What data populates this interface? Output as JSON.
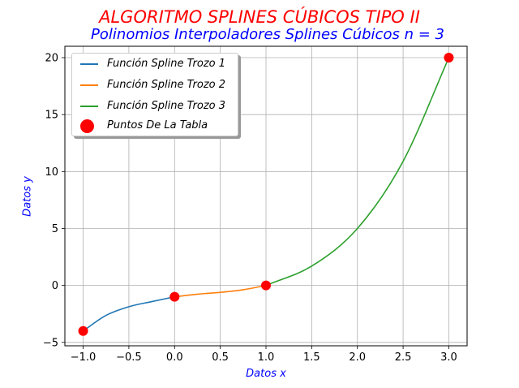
{
  "chart_data": {
    "type": "line",
    "title": "ALGORITMO SPLINES CÚBICOS TIPO II",
    "subtitle": "Polinomios Interpoladores Splines Cúbicos n = 3",
    "xlabel": "Datos x",
    "ylabel": "Datos y",
    "xlim": [
      -1.2,
      3.2
    ],
    "ylim": [
      -5.3,
      21.0
    ],
    "xticks": [
      -1.0,
      -0.5,
      0.0,
      0.5,
      1.0,
      1.5,
      2.0,
      2.5,
      3.0
    ],
    "xtick_labels": [
      "−1.0",
      "−0.5",
      "0.0",
      "0.5",
      "1.0",
      "1.5",
      "2.0",
      "2.5",
      "3.0"
    ],
    "yticks": [
      -5,
      0,
      5,
      10,
      15,
      20
    ],
    "ytick_labels": [
      "−5",
      "0",
      "5",
      "10",
      "15",
      "20"
    ],
    "grid": true,
    "legend_position": "top-left",
    "series": [
      {
        "name": "Función Spline Trozo 1",
        "color": "#1f77b4",
        "x_range": [
          -1,
          0
        ],
        "x": [
          -1.0,
          -0.75,
          -0.5,
          -0.25,
          0.0
        ],
        "y": [
          -4.0,
          -2.63,
          -1.87,
          -1.42,
          -1.0
        ]
      },
      {
        "name": "Función Spline Trozo 2",
        "color": "#ff7f0e",
        "x_range": [
          0,
          1
        ],
        "x": [
          0.0,
          0.25,
          0.5,
          0.75,
          1.0
        ],
        "y": [
          -1.0,
          -0.77,
          -0.61,
          -0.38,
          0.0
        ]
      },
      {
        "name": "Función Spline Trozo 3",
        "color": "#2ca02c",
        "x_range": [
          1,
          3
        ],
        "x": [
          1.0,
          1.5,
          2.0,
          2.5,
          3.0
        ],
        "y": [
          0.0,
          1.7,
          5.0,
          10.9,
          20.0
        ]
      },
      {
        "name": "Puntos De La Tabla",
        "type": "scatter",
        "color": "#ff0000",
        "x": [
          -1,
          0,
          1,
          3
        ],
        "y": [
          -4,
          -1,
          0,
          20
        ]
      }
    ],
    "title_color": "#ff0000",
    "subtitle_color": "#0000ff",
    "label_color": "#0000ff"
  }
}
